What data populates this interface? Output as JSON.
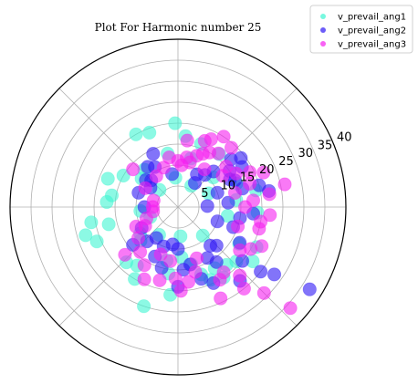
{
  "chart_data": {
    "type": "scatter",
    "subtype": "polar",
    "title": "Plot For Harmonic number 25",
    "r_ticks": [
      5,
      10,
      15,
      20,
      25,
      30,
      35,
      40
    ],
    "r_lim": [
      0,
      40
    ],
    "theta_gridlines_deg": [
      0,
      45,
      90,
      135,
      180,
      225,
      270,
      315
    ],
    "grid": true,
    "legend_position": "top-right",
    "series": [
      {
        "name": "v_prevail_ang1",
        "color": "#3ff5d2",
        "points": [
          [
            111,
            19
          ],
          [
            132,
            12
          ],
          [
            150,
            15
          ],
          [
            158,
            18
          ],
          [
            170,
            16
          ],
          [
            176,
            17
          ],
          [
            190,
            21
          ],
          [
            194,
            17
          ],
          [
            197,
            23
          ],
          [
            203,
            21
          ],
          [
            215,
            11
          ],
          [
            222,
            12
          ],
          [
            227,
            18
          ],
          [
            235,
            17
          ],
          [
            239,
            20
          ],
          [
            251,
            25
          ],
          [
            258,
            13
          ],
          [
            262,
            16
          ],
          [
            265,
            21
          ],
          [
            274,
            12
          ],
          [
            283,
            14
          ],
          [
            289,
            17
          ],
          [
            294,
            19
          ],
          [
            301,
            17
          ],
          [
            303,
            20
          ],
          [
            310,
            18
          ],
          [
            317,
            19
          ],
          [
            324,
            22
          ],
          [
            329,
            17
          ],
          [
            333,
            21
          ],
          [
            350,
            12
          ],
          [
            356,
            19
          ],
          [
            7,
            14
          ],
          [
            12,
            19
          ],
          [
            22,
            15
          ],
          [
            40,
            11
          ],
          [
            52,
            16
          ],
          [
            70,
            16
          ],
          [
            75,
            12
          ],
          [
            84,
            17
          ],
          [
            92,
            20
          ],
          [
            101,
            13
          ],
          [
            120,
            20
          ],
          [
            142,
            11
          ],
          [
            186,
            9
          ],
          [
            200,
            7
          ],
          [
            236,
            8
          ],
          [
            275,
            7
          ],
          [
            311,
            9
          ],
          [
            24,
            8
          ],
          [
            58,
            6
          ],
          [
            95,
            7
          ],
          [
            137,
            6
          ]
        ]
      },
      {
        "name": "v_prevail_ang2",
        "color": "#2e17f5",
        "points": [
          [
            20,
            10
          ],
          [
            25,
            15
          ],
          [
            32,
            18
          ],
          [
            35,
            15
          ],
          [
            38,
            19
          ],
          [
            45,
            12
          ],
          [
            50,
            10
          ],
          [
            55,
            7
          ],
          [
            120,
            11
          ],
          [
            127,
            12
          ],
          [
            135,
            9
          ],
          [
            140,
            10
          ],
          [
            145,
            8
          ],
          [
            160,
            10
          ],
          [
            180,
            8
          ],
          [
            210,
            10
          ],
          [
            220,
            14
          ],
          [
            228,
            11
          ],
          [
            235,
            9
          ],
          [
            245,
            13
          ],
          [
            250,
            10
          ],
          [
            255,
            15
          ],
          [
            262,
            9
          ],
          [
            270,
            10
          ],
          [
            275,
            15
          ],
          [
            282,
            14
          ],
          [
            288,
            18
          ],
          [
            295,
            20
          ],
          [
            300,
            14
          ],
          [
            305,
            16
          ],
          [
            310,
            12
          ],
          [
            315,
            13
          ],
          [
            320,
            20
          ],
          [
            322,
            25
          ],
          [
            325,
            28
          ],
          [
            330,
            17
          ],
          [
            340,
            14
          ],
          [
            350,
            15
          ],
          [
            355,
            18
          ],
          [
            5,
            12
          ],
          [
            10,
            22
          ],
          [
            15,
            20
          ],
          [
            16,
            16
          ],
          [
            28,
            14
          ],
          [
            42,
            17
          ],
          [
            60,
            9
          ],
          [
            100,
            8
          ],
          [
            115,
            14
          ],
          [
            270,
            19
          ],
          [
            310,
            23
          ],
          [
            328,
            37
          ],
          [
            340,
            10
          ],
          [
            2,
            7
          ]
        ]
      },
      {
        "name": "v_prevail_ang3",
        "color": "#f51ff0",
        "points": [
          [
            55,
            11
          ],
          [
            60,
            15
          ],
          [
            65,
            14
          ],
          [
            70,
            13
          ],
          [
            75,
            11
          ],
          [
            80,
            12
          ],
          [
            85,
            10
          ],
          [
            90,
            11
          ],
          [
            100,
            12
          ],
          [
            110,
            10
          ],
          [
            125,
            9
          ],
          [
            140,
            14
          ],
          [
            150,
            9
          ],
          [
            165,
            6
          ],
          [
            180,
            6
          ],
          [
            190,
            6
          ],
          [
            200,
            8
          ],
          [
            205,
            11
          ],
          [
            210,
            9
          ],
          [
            218,
            12
          ],
          [
            222,
            17
          ],
          [
            230,
            14
          ],
          [
            240,
            16
          ],
          [
            245,
            19
          ],
          [
            250,
            12
          ],
          [
            256,
            18
          ],
          [
            262,
            13
          ],
          [
            268,
            17
          ],
          [
            272,
            20
          ],
          [
            278,
            18
          ],
          [
            285,
            16
          ],
          [
            290,
            13
          ],
          [
            295,
            24
          ],
          [
            300,
            20
          ],
          [
            305,
            19
          ],
          [
            309,
            25
          ],
          [
            312,
            22
          ],
          [
            315,
            29
          ],
          [
            318,
            36
          ],
          [
            325,
            18
          ],
          [
            330,
            20
          ],
          [
            335,
            22
          ],
          [
            342,
            15
          ],
          [
            345,
            20
          ],
          [
            350,
            20
          ],
          [
            355,
            22
          ],
          [
            0,
            16
          ],
          [
            5,
            18
          ],
          [
            8,
            22
          ],
          [
            12,
            26
          ],
          [
            14,
            14
          ],
          [
            18,
            18
          ],
          [
            22,
            22
          ],
          [
            26,
            19
          ],
          [
            30,
            16
          ],
          [
            35,
            13
          ],
          [
            40,
            15
          ],
          [
            48,
            19
          ],
          [
            53,
            16
          ],
          [
            57,
            20
          ],
          [
            64,
            18
          ],
          [
            68,
            17
          ],
          [
            82,
            16
          ]
        ]
      }
    ]
  }
}
